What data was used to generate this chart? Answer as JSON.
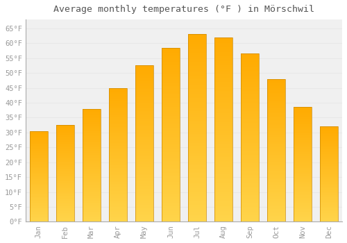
{
  "months": [
    "Jan",
    "Feb",
    "Mar",
    "Apr",
    "May",
    "Jun",
    "Jul",
    "Aug",
    "Sep",
    "Oct",
    "Nov",
    "Dec"
  ],
  "values": [
    30.5,
    32.5,
    38.0,
    45.0,
    52.5,
    58.5,
    63.0,
    62.0,
    56.5,
    48.0,
    38.5,
    32.0
  ],
  "bar_color": "#FFAA00",
  "bar_color_light": "#FFD44A",
  "title": "Average monthly temperatures (°F ) in Mörschwil",
  "title_fontsize": 9.5,
  "ylabel_ticks": [
    "0°F",
    "5°F",
    "10°F",
    "15°F",
    "20°F",
    "25°F",
    "30°F",
    "35°F",
    "40°F",
    "45°F",
    "50°F",
    "55°F",
    "60°F",
    "65°F"
  ],
  "ytick_values": [
    0,
    5,
    10,
    15,
    20,
    25,
    30,
    35,
    40,
    45,
    50,
    55,
    60,
    65
  ],
  "ylim": [
    0,
    68
  ],
  "background_color": "#ffffff",
  "plot_bg_color": "#f0f0f0",
  "grid_color": "#e8e8e8",
  "tick_label_color": "#999999",
  "bar_edge_color": "#cc8800"
}
